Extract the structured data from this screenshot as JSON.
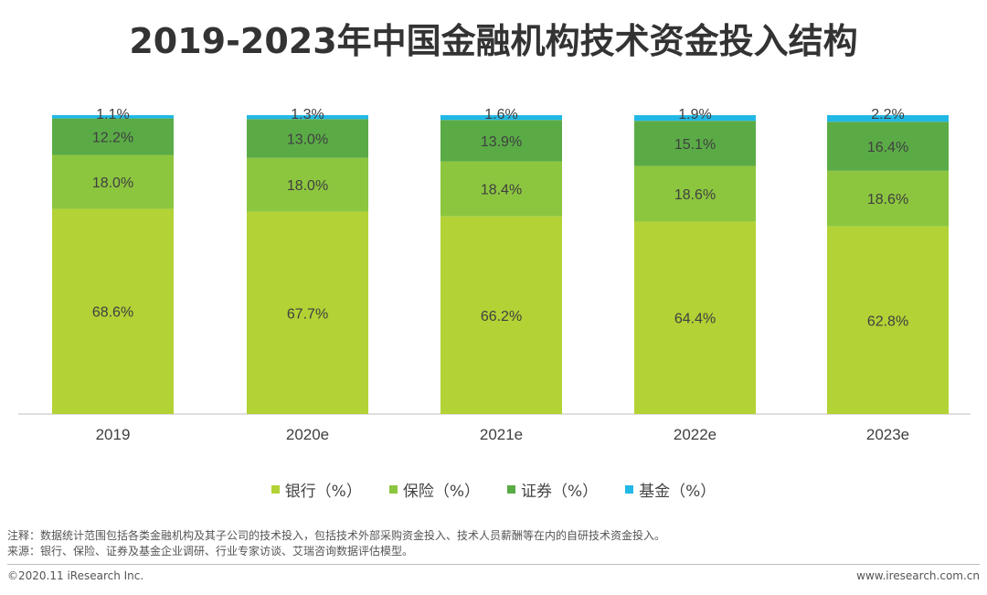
{
  "title": "2019-2023年中国金融机构技术资金投入结构",
  "chart_data": {
    "type": "bar",
    "stacked": true,
    "categories": [
      "2019",
      "2020e",
      "2021e",
      "2022e",
      "2023e"
    ],
    "series": [
      {
        "name": "银行（%）",
        "color": "#b2d235",
        "values": [
          68.6,
          67.7,
          66.2,
          64.4,
          62.8
        ],
        "labels": [
          "68.6%",
          "67.7%",
          "66.2%",
          "64.4%",
          "62.8%"
        ]
      },
      {
        "name": "保险（%）",
        "color": "#8cc63f",
        "values": [
          18.0,
          18.0,
          18.4,
          18.6,
          18.6
        ],
        "labels": [
          "18.0%",
          "18.0%",
          "18.4%",
          "18.6%",
          "18.6%"
        ]
      },
      {
        "name": "证券（%）",
        "color": "#5aab46",
        "values": [
          12.2,
          13.0,
          13.9,
          15.1,
          16.4
        ],
        "labels": [
          "12.2%",
          "13.0%",
          "13.9%",
          "15.1%",
          "16.4%"
        ]
      },
      {
        "name": "基金（%）",
        "color": "#22b8e6",
        "values": [
          1.1,
          1.3,
          1.6,
          1.9,
          2.2
        ],
        "labels": [
          "1.1%",
          "1.3%",
          "1.6%",
          "1.9%",
          "2.2%"
        ]
      }
    ],
    "ylim": [
      0,
      100
    ],
    "legend_position": "bottom"
  },
  "notes": {
    "note": "注释：数据统计范围包括各类金融机构及其子公司的技术投入，包括技术外部采购资金投入、技术人员薪酬等在内的自研技术资金投入。",
    "source": "来源：银行、保险、证券及基金企业调研、行业专家访谈、艾瑞咨询数据评估模型。"
  },
  "footer": {
    "copyright": "©2020.11 iResearch Inc.",
    "website": "www.iresearch.com.cn"
  }
}
